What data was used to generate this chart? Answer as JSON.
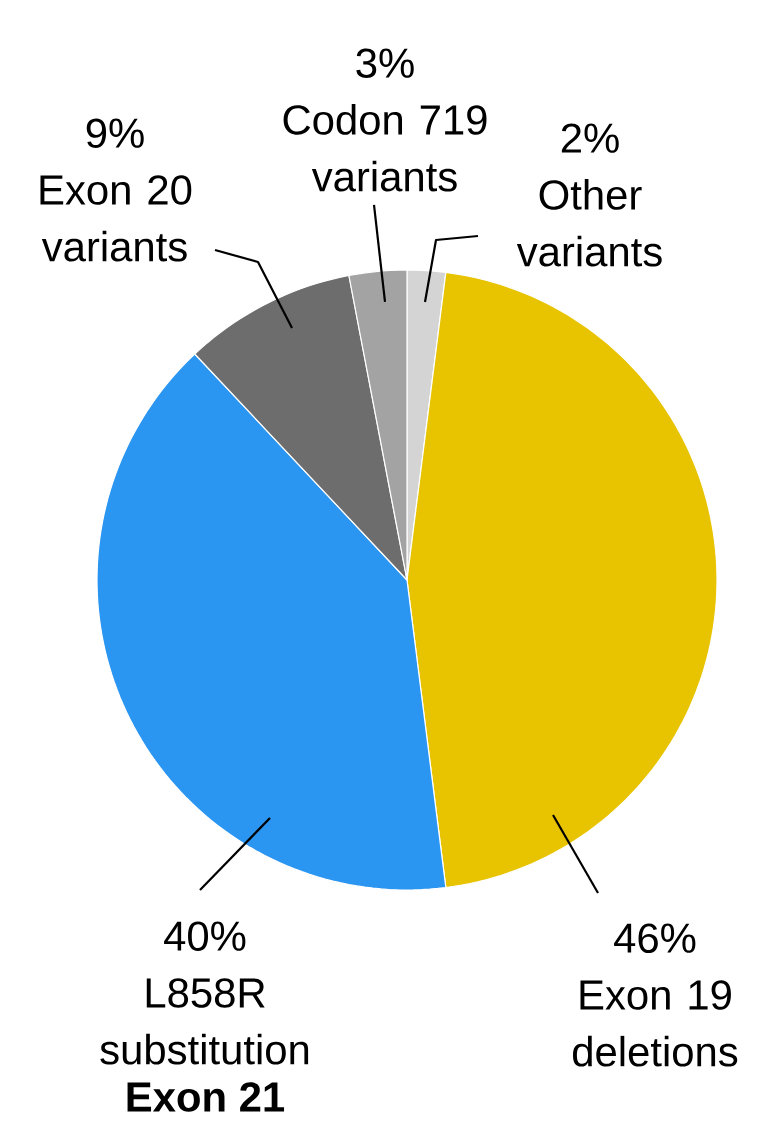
{
  "chart_data": {
    "type": "pie",
    "categories": [
      "Other variants",
      "Exon 19 deletions",
      "L858R substitution",
      "Exon 20 variants",
      "Codon 719 variants"
    ],
    "values": [
      2,
      46,
      40,
      9,
      3
    ],
    "value_labels": [
      "2%",
      "46%",
      "40%",
      "9%",
      "3%"
    ],
    "colors": [
      "#d4d4d4",
      "#e8c300",
      "#2b95f2",
      "#6d6d6d",
      "#a3a3a3"
    ],
    "annotations": [
      "Exon 21"
    ]
  }
}
